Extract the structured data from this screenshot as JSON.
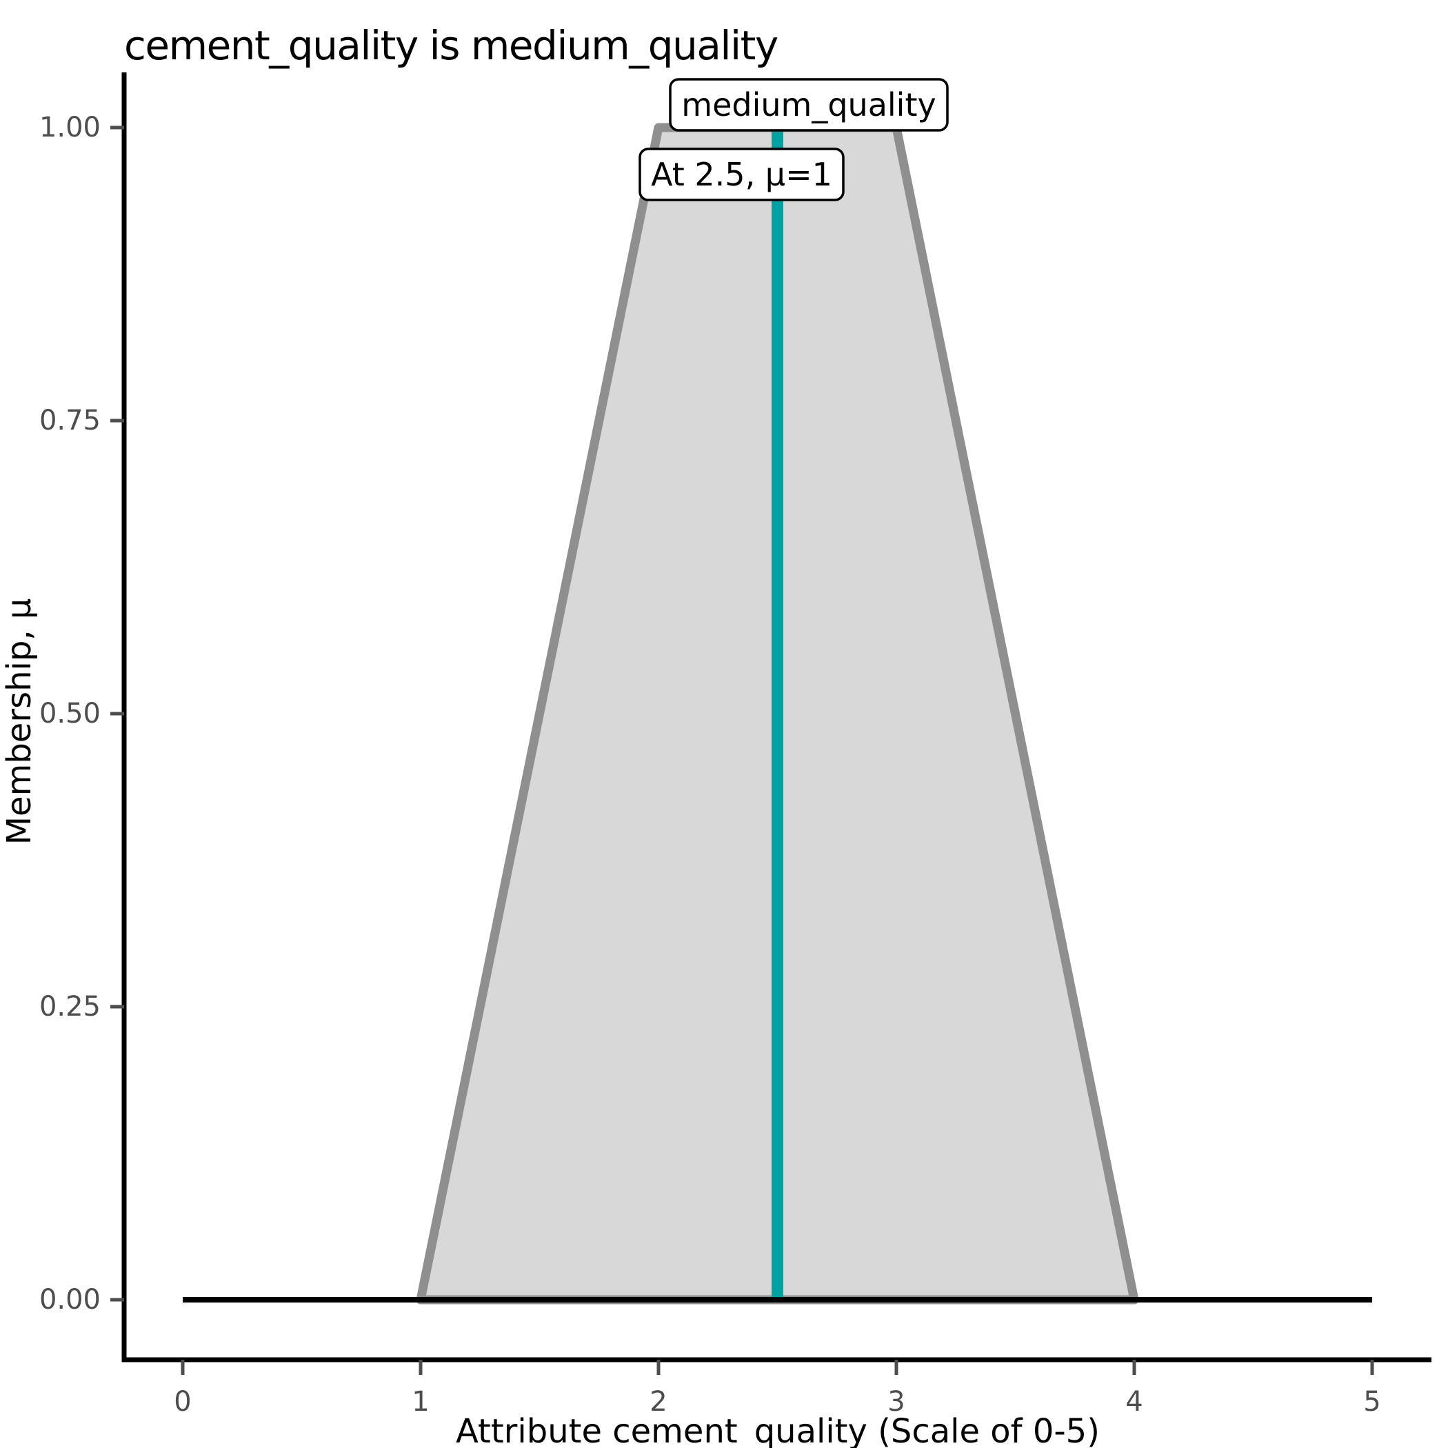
{
  "title": "cement_quality is medium_quality",
  "chart_data": {
    "type": "area",
    "subtype": "fuzzy-membership-function",
    "title": "cement_quality is medium_quality",
    "xlabel": "Attribute cement_quality (Scale of 0-5)",
    "ylabel": "Membership, μ",
    "xlim": [
      0,
      5
    ],
    "ylim": [
      0.0,
      1.0
    ],
    "grid": "off",
    "legend": "none",
    "x_ticks": [
      {
        "label": "0",
        "value": 0
      },
      {
        "label": "1",
        "value": 1
      },
      {
        "label": "2",
        "value": 2
      },
      {
        "label": "3",
        "value": 3
      },
      {
        "label": "4",
        "value": 4
      },
      {
        "label": "5",
        "value": 5
      }
    ],
    "y_ticks": [
      {
        "label": "0.00",
        "value": 0.0
      },
      {
        "label": "0.25",
        "value": 0.25
      },
      {
        "label": "0.50",
        "value": 0.5
      },
      {
        "label": "0.75",
        "value": 0.75
      },
      {
        "label": "1.00",
        "value": 1.0
      }
    ],
    "series": [
      {
        "name": "medium_quality",
        "shape": "trapezoid",
        "points": [
          {
            "x": 1,
            "mu": 0
          },
          {
            "x": 2,
            "mu": 1
          },
          {
            "x": 3,
            "mu": 1
          },
          {
            "x": 4,
            "mu": 0
          }
        ]
      }
    ],
    "baseline_segment": {
      "mu": 0,
      "x_from": 0,
      "x_to": 5
    },
    "crisp_value_line": {
      "x": 2.5,
      "mu_from": 0,
      "mu_to": 1
    },
    "annotations": [
      {
        "text": "medium_quality"
      },
      {
        "text": "At 2.5, μ=1"
      }
    ],
    "colors": {
      "membership_fill": "#D8D8D8",
      "membership_outline": "#8F8F8F",
      "crisp_line": "#00A3A3",
      "axis_line": "#000000",
      "tick_label": "#4D4D4D",
      "tick_mark": "#4D4D4D",
      "title_text": "#000000",
      "annotation_box_fill": "#FFFFFF",
      "annotation_box_stroke": "#000000",
      "background": "#FFFFFF"
    }
  }
}
